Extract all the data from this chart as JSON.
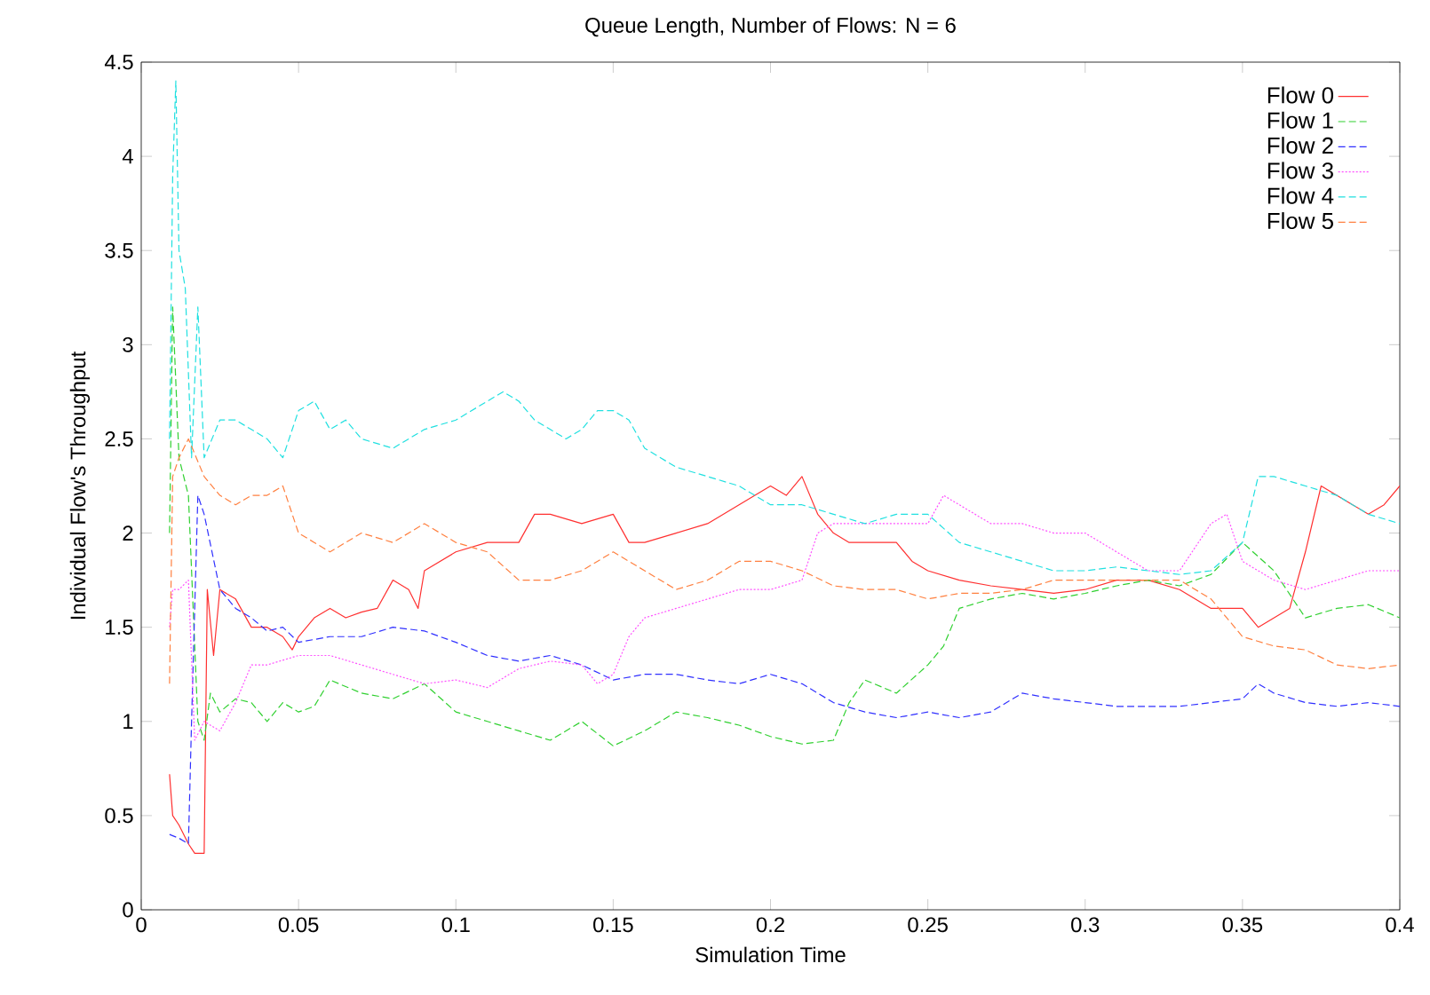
{
  "chart_data": {
    "type": "line",
    "title": "Queue Length, Number of Flows: N = 6",
    "xlabel": "Simulation Time",
    "ylabel": "Individual Flow's Throughput",
    "xlim": [
      0,
      0.4
    ],
    "ylim": [
      0,
      4.5
    ],
    "xticks": [
      0,
      0.05,
      0.1,
      0.15,
      0.2,
      0.25,
      0.3,
      0.35,
      0.4
    ],
    "yticks": [
      0,
      0.5,
      1,
      1.5,
      2,
      2.5,
      3,
      3.5,
      4,
      4.5
    ],
    "grid": false,
    "legend": "top right",
    "marker": "none",
    "series": [
      {
        "name": "Flow 0",
        "color": "#ff3030",
        "line_style": "solid",
        "x": [
          0.009,
          0.01,
          0.012,
          0.015,
          0.017,
          0.02,
          0.021,
          0.023,
          0.025,
          0.03,
          0.035,
          0.04,
          0.045,
          0.048,
          0.05,
          0.055,
          0.06,
          0.065,
          0.07,
          0.075,
          0.08,
          0.085,
          0.088,
          0.09,
          0.1,
          0.11,
          0.12,
          0.125,
          0.13,
          0.14,
          0.15,
          0.155,
          0.16,
          0.17,
          0.18,
          0.19,
          0.2,
          0.205,
          0.21,
          0.215,
          0.22,
          0.225,
          0.235,
          0.24,
          0.245,
          0.25,
          0.26,
          0.27,
          0.28,
          0.29,
          0.3,
          0.31,
          0.32,
          0.33,
          0.34,
          0.35,
          0.355,
          0.36,
          0.365,
          0.37,
          0.375,
          0.38,
          0.385,
          0.39,
          0.395,
          0.4
        ],
        "values": [
          0.72,
          0.5,
          0.45,
          0.35,
          0.3,
          0.3,
          1.7,
          1.35,
          1.7,
          1.65,
          1.5,
          1.5,
          1.45,
          1.38,
          1.45,
          1.55,
          1.6,
          1.55,
          1.58,
          1.6,
          1.75,
          1.7,
          1.6,
          1.8,
          1.9,
          1.95,
          1.95,
          2.1,
          2.1,
          2.05,
          2.1,
          1.95,
          1.95,
          2.0,
          2.05,
          2.15,
          2.25,
          2.2,
          2.3,
          2.1,
          2.0,
          1.95,
          1.95,
          1.95,
          1.85,
          1.8,
          1.75,
          1.72,
          1.7,
          1.68,
          1.7,
          1.75,
          1.75,
          1.7,
          1.6,
          1.6,
          1.5,
          1.55,
          1.6,
          1.9,
          2.25,
          2.2,
          2.15,
          2.1,
          2.15,
          2.25
        ]
      },
      {
        "name": "Flow 1",
        "color": "#30d030",
        "line_style": "dashed",
        "x": [
          0.009,
          0.01,
          0.012,
          0.015,
          0.018,
          0.02,
          0.022,
          0.025,
          0.03,
          0.035,
          0.04,
          0.045,
          0.05,
          0.055,
          0.06,
          0.07,
          0.08,
          0.09,
          0.1,
          0.11,
          0.12,
          0.13,
          0.14,
          0.15,
          0.16,
          0.17,
          0.18,
          0.19,
          0.2,
          0.21,
          0.22,
          0.225,
          0.23,
          0.24,
          0.25,
          0.255,
          0.26,
          0.27,
          0.28,
          0.29,
          0.3,
          0.31,
          0.32,
          0.33,
          0.34,
          0.35,
          0.36,
          0.37,
          0.38,
          0.39,
          0.4
        ],
        "values": [
          2.0,
          3.2,
          2.4,
          2.2,
          1.0,
          0.9,
          1.15,
          1.05,
          1.12,
          1.1,
          1.0,
          1.1,
          1.05,
          1.08,
          1.22,
          1.15,
          1.12,
          1.2,
          1.05,
          1.0,
          0.95,
          0.9,
          1.0,
          0.87,
          0.95,
          1.05,
          1.02,
          0.98,
          0.92,
          0.88,
          0.9,
          1.1,
          1.22,
          1.15,
          1.3,
          1.4,
          1.6,
          1.65,
          1.68,
          1.65,
          1.68,
          1.72,
          1.75,
          1.72,
          1.78,
          1.95,
          1.8,
          1.55,
          1.6,
          1.62,
          1.55
        ]
      },
      {
        "name": "Flow 2",
        "color": "#3030ff",
        "line_style": "dashed",
        "x": [
          0.009,
          0.012,
          0.015,
          0.016,
          0.018,
          0.02,
          0.025,
          0.03,
          0.035,
          0.04,
          0.045,
          0.05,
          0.06,
          0.07,
          0.08,
          0.09,
          0.1,
          0.11,
          0.12,
          0.13,
          0.14,
          0.15,
          0.16,
          0.17,
          0.18,
          0.19,
          0.2,
          0.21,
          0.22,
          0.23,
          0.24,
          0.25,
          0.26,
          0.27,
          0.28,
          0.29,
          0.3,
          0.31,
          0.32,
          0.33,
          0.34,
          0.35,
          0.355,
          0.36,
          0.37,
          0.38,
          0.39,
          0.4
        ],
        "values": [
          0.4,
          0.38,
          0.35,
          1.0,
          2.2,
          2.1,
          1.7,
          1.6,
          1.55,
          1.48,
          1.5,
          1.42,
          1.45,
          1.45,
          1.5,
          1.48,
          1.42,
          1.35,
          1.32,
          1.35,
          1.3,
          1.22,
          1.25,
          1.25,
          1.22,
          1.2,
          1.25,
          1.2,
          1.1,
          1.05,
          1.02,
          1.05,
          1.02,
          1.05,
          1.15,
          1.12,
          1.1,
          1.08,
          1.08,
          1.08,
          1.1,
          1.12,
          1.2,
          1.15,
          1.1,
          1.08,
          1.1,
          1.08
        ]
      },
      {
        "name": "Flow 3",
        "color": "#ff50ff",
        "line_style": "dotted",
        "x": [
          0.009,
          0.01,
          0.012,
          0.015,
          0.017,
          0.02,
          0.025,
          0.03,
          0.035,
          0.04,
          0.05,
          0.06,
          0.07,
          0.08,
          0.09,
          0.1,
          0.11,
          0.12,
          0.13,
          0.14,
          0.145,
          0.15,
          0.155,
          0.16,
          0.17,
          0.18,
          0.19,
          0.2,
          0.21,
          0.215,
          0.22,
          0.23,
          0.24,
          0.25,
          0.255,
          0.26,
          0.27,
          0.28,
          0.29,
          0.3,
          0.31,
          0.32,
          0.33,
          0.34,
          0.345,
          0.35,
          0.36,
          0.37,
          0.38,
          0.39,
          0.4
        ],
        "values": [
          1.5,
          1.7,
          1.7,
          1.75,
          0.9,
          1.0,
          0.95,
          1.1,
          1.3,
          1.3,
          1.35,
          1.35,
          1.3,
          1.25,
          1.2,
          1.22,
          1.18,
          1.28,
          1.32,
          1.3,
          1.2,
          1.25,
          1.45,
          1.55,
          1.6,
          1.65,
          1.7,
          1.7,
          1.75,
          2.0,
          2.05,
          2.05,
          2.05,
          2.05,
          2.2,
          2.15,
          2.05,
          2.05,
          2.0,
          2.0,
          1.9,
          1.8,
          1.8,
          2.05,
          2.1,
          1.85,
          1.75,
          1.7,
          1.75,
          1.8,
          1.8
        ]
      },
      {
        "name": "Flow 4",
        "color": "#20e0e0",
        "line_style": "dashed",
        "x": [
          0.009,
          0.01,
          0.011,
          0.012,
          0.014,
          0.016,
          0.018,
          0.02,
          0.025,
          0.03,
          0.035,
          0.04,
          0.045,
          0.05,
          0.055,
          0.06,
          0.065,
          0.07,
          0.08,
          0.09,
          0.1,
          0.11,
          0.115,
          0.12,
          0.125,
          0.13,
          0.135,
          0.14,
          0.145,
          0.15,
          0.155,
          0.16,
          0.17,
          0.18,
          0.19,
          0.2,
          0.21,
          0.22,
          0.23,
          0.24,
          0.25,
          0.26,
          0.27,
          0.28,
          0.29,
          0.3,
          0.31,
          0.32,
          0.33,
          0.34,
          0.35,
          0.355,
          0.36,
          0.37,
          0.38,
          0.39,
          0.4
        ],
        "values": [
          2.5,
          3.9,
          4.4,
          3.5,
          3.3,
          2.4,
          3.2,
          2.4,
          2.6,
          2.6,
          2.55,
          2.5,
          2.4,
          2.65,
          2.7,
          2.55,
          2.6,
          2.5,
          2.45,
          2.55,
          2.6,
          2.7,
          2.75,
          2.7,
          2.6,
          2.55,
          2.5,
          2.55,
          2.65,
          2.65,
          2.6,
          2.45,
          2.35,
          2.3,
          2.25,
          2.15,
          2.15,
          2.1,
          2.05,
          2.1,
          2.1,
          1.95,
          1.9,
          1.85,
          1.8,
          1.8,
          1.82,
          1.8,
          1.78,
          1.8,
          1.95,
          2.3,
          2.3,
          2.25,
          2.2,
          2.1,
          2.05
        ]
      },
      {
        "name": "Flow 5",
        "color": "#ff8040",
        "line_style": "dashed",
        "x": [
          0.009,
          0.01,
          0.012,
          0.015,
          0.02,
          0.025,
          0.03,
          0.035,
          0.04,
          0.045,
          0.05,
          0.055,
          0.06,
          0.07,
          0.08,
          0.09,
          0.1,
          0.11,
          0.12,
          0.13,
          0.14,
          0.15,
          0.16,
          0.17,
          0.18,
          0.19,
          0.2,
          0.21,
          0.22,
          0.23,
          0.24,
          0.25,
          0.26,
          0.27,
          0.28,
          0.29,
          0.3,
          0.31,
          0.32,
          0.33,
          0.34,
          0.35,
          0.36,
          0.37,
          0.38,
          0.39,
          0.4
        ],
        "values": [
          1.2,
          2.3,
          2.4,
          2.5,
          2.3,
          2.2,
          2.15,
          2.2,
          2.2,
          2.25,
          2.0,
          1.95,
          1.9,
          2.0,
          1.95,
          2.05,
          1.95,
          1.9,
          1.75,
          1.75,
          1.8,
          1.9,
          1.8,
          1.7,
          1.75,
          1.85,
          1.85,
          1.8,
          1.72,
          1.7,
          1.7,
          1.65,
          1.68,
          1.68,
          1.7,
          1.75,
          1.75,
          1.75,
          1.75,
          1.75,
          1.65,
          1.45,
          1.4,
          1.38,
          1.3,
          1.28,
          1.3
        ]
      }
    ]
  }
}
